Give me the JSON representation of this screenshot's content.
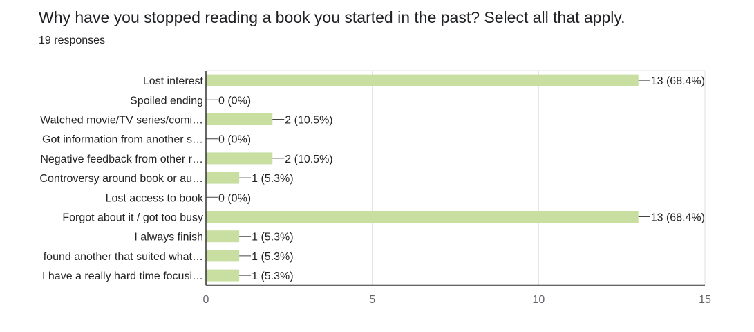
{
  "question": {
    "title": "Why have you stopped reading a book you started in the past? Select all that apply.",
    "responses": "19 responses"
  },
  "chart_data": {
    "type": "bar",
    "orientation": "horizontal",
    "categories": [
      "Lost interest",
      "Spoiled ending",
      "Watched movie/TV series/comi…",
      "Got information from another s…",
      "Negative feedback from other r…",
      "Controversy around book or au…",
      "Lost access to book",
      "Forgot about it / got too busy",
      "I always finish",
      "found another that suited what…",
      "I have a really hard time focusi…"
    ],
    "values": [
      13,
      0,
      2,
      0,
      2,
      1,
      0,
      13,
      1,
      1,
      1
    ],
    "data_labels": [
      "13 (68.4%)",
      "0 (0%)",
      "2 (10.5%)",
      "0 (0%)",
      "2 (10.5%)",
      "1 (5.3%)",
      "0 (0%)",
      "13 (68.4%)",
      "1 (5.3%)",
      "1 (5.3%)",
      "1 (5.3%)"
    ],
    "xlim": [
      0,
      15
    ],
    "xticks": [
      "0",
      "5",
      "10",
      "15"
    ],
    "grid": true,
    "bar_color": "#c9dfa2",
    "title": "",
    "xlabel": "",
    "ylabel": ""
  }
}
